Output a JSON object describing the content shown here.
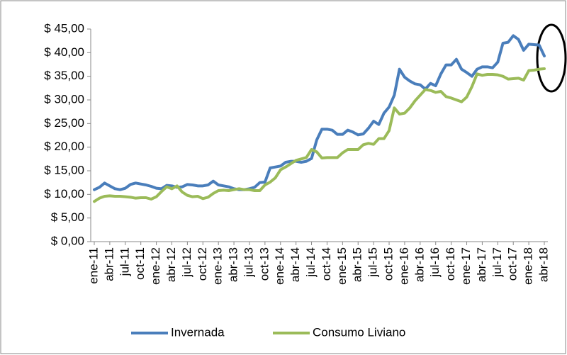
{
  "chart_data": {
    "type": "line",
    "categories": [
      "ene-11",
      null,
      null,
      "abr-11",
      null,
      null,
      "jul-11",
      null,
      null,
      "oct-11",
      null,
      null,
      "ene-12",
      null,
      null,
      "abr-12",
      null,
      null,
      "jul-12",
      null,
      null,
      "oct-12",
      null,
      null,
      "ene-13",
      null,
      null,
      "abr-13",
      null,
      null,
      "jul-13",
      null,
      null,
      "oct-13",
      null,
      null,
      "ene-14",
      null,
      null,
      "abr-14",
      null,
      null,
      "jul-14",
      null,
      null,
      "oct-14",
      null,
      null,
      "ene-15",
      null,
      null,
      "abr-15",
      null,
      null,
      "jul-15",
      null,
      null,
      "oct-15",
      null,
      null,
      "ene-16",
      null,
      null,
      "abr-16",
      null,
      null,
      "jul-16",
      null,
      null,
      "oct-16",
      null,
      null,
      "ene-17",
      null,
      null,
      "abr-17",
      null,
      null,
      "jul-17",
      null,
      null,
      "oct-17",
      null,
      null,
      "ene-18",
      null,
      null,
      "abr-18"
    ],
    "series": [
      {
        "name": "Invernada",
        "color": "#4a7ebb",
        "values": [
          11,
          11.5,
          12.4,
          11.8,
          11.2,
          11.0,
          11.3,
          12.1,
          12.4,
          12.2,
          12.0,
          11.7,
          11.3,
          11.2,
          11.9,
          11.8,
          11.5,
          11.6,
          12.1,
          12.0,
          11.8,
          11.8,
          12.0,
          12.8,
          12.0,
          11.8,
          11.6,
          11.2,
          11.0,
          11.0,
          11.2,
          11.5,
          12.5,
          12.6,
          15.6,
          15.8,
          16.0,
          16.8,
          17.0,
          17.0,
          16.8,
          17.0,
          17.6,
          21.5,
          23.8,
          23.8,
          23.6,
          22.7,
          22.7,
          23.6,
          23.2,
          22.6,
          22.8,
          24.0,
          25.5,
          24.8,
          27.2,
          28.5,
          31.0,
          36.5,
          34.8,
          34.0,
          33.4,
          33.2,
          32.3,
          33.5,
          33.0,
          35.5,
          37.4,
          37.4,
          38.6,
          36.5,
          35.8,
          35.0,
          36.5,
          37.0,
          37.0,
          36.8,
          38.0,
          42.0,
          42.2,
          43.6,
          42.8,
          40.5,
          41.8,
          41.7,
          41.6,
          39.3
        ]
      },
      {
        "name": "Consumo Liviano",
        "color": "#9bbb59",
        "values": [
          8.5,
          9.2,
          9.6,
          9.7,
          9.6,
          9.6,
          9.5,
          9.4,
          9.2,
          9.3,
          9.3,
          9.0,
          9.5,
          10.6,
          11.6,
          11.2,
          11.8,
          10.5,
          9.8,
          9.5,
          9.6,
          9.1,
          9.4,
          10.2,
          10.8,
          10.9,
          10.8,
          11.0,
          11.2,
          11.0,
          11.0,
          10.8,
          10.8,
          12.0,
          12.6,
          13.5,
          15.2,
          15.8,
          16.5,
          17.2,
          17.5,
          17.8,
          19.5,
          19.0,
          17.7,
          17.8,
          17.8,
          17.8,
          18.8,
          19.5,
          19.5,
          19.5,
          20.5,
          20.8,
          20.6,
          21.8,
          21.8,
          23.5,
          28.3,
          27.0,
          27.2,
          28.3,
          29.8,
          31.0,
          32.2,
          32.0,
          31.6,
          31.8,
          30.7,
          30.4,
          30.0,
          29.6,
          30.6,
          32.8,
          35.5,
          35.2,
          35.4,
          35.4,
          35.3,
          35.0,
          34.4,
          34.5,
          34.6,
          34.2,
          36.2,
          36.3,
          36.5,
          36.6
        ]
      }
    ],
    "ylim": [
      0,
      45
    ],
    "yticks": [
      {
        "value": 0,
        "label": "$ 0,00"
      },
      {
        "value": 5,
        "label": "$ 5,00"
      },
      {
        "value": 10,
        "label": "$ 10,00"
      },
      {
        "value": 15,
        "label": "$ 15,00"
      },
      {
        "value": 20,
        "label": "$ 20,00"
      },
      {
        "value": 25,
        "label": "$ 25,00"
      },
      {
        "value": 30,
        "label": "$ 30,00"
      },
      {
        "value": 35,
        "label": "$ 35,00"
      },
      {
        "value": 40,
        "label": "$ 40,00"
      },
      {
        "value": 45,
        "label": "$ 45,00"
      }
    ],
    "grid": false,
    "legend": "bottom"
  }
}
